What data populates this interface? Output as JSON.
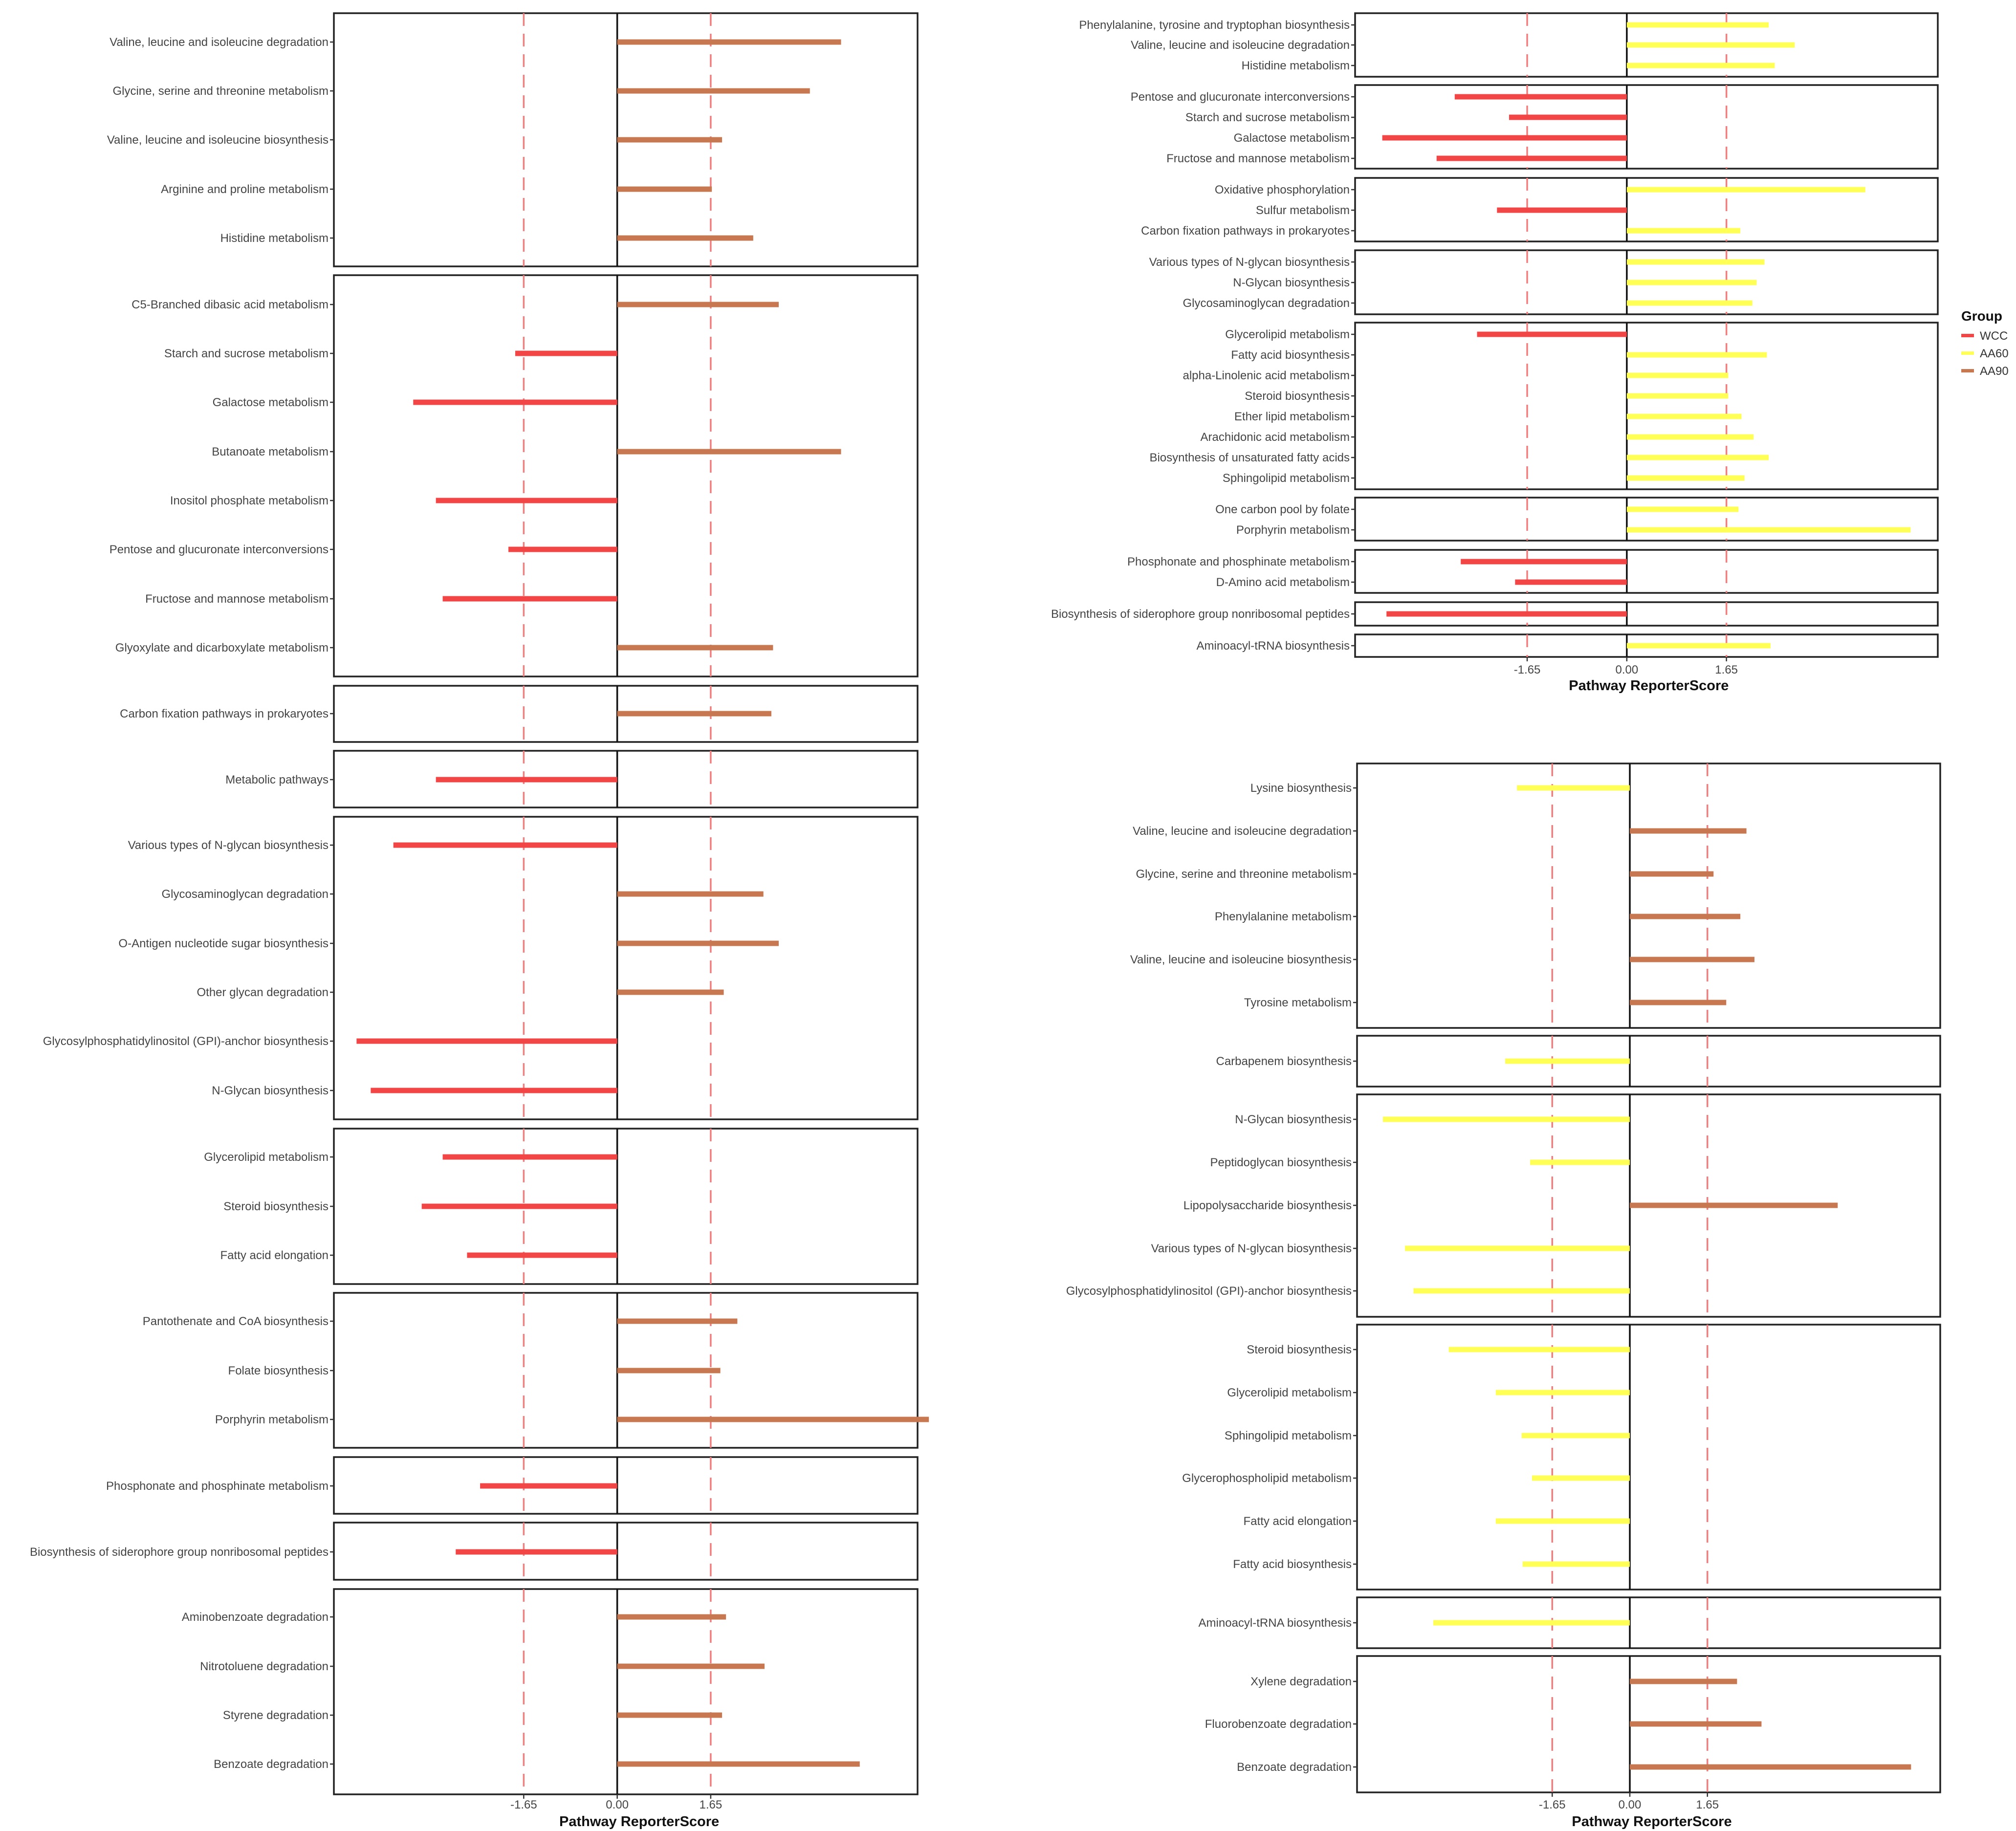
{
  "figure": {
    "legend_title": "Group"
  },
  "colors": {
    "WCC": "#f24545",
    "AA60": "#ffff55",
    "AA90": "#c87850",
    "ref_line": "#f08080",
    "box": "#222222",
    "text": "#444444"
  },
  "legend": [
    {
      "label": "WCC",
      "color": "#f24545"
    },
    {
      "label": "AA60",
      "color": "#ffff55"
    },
    {
      "label": "AA90",
      "color": "#c87850"
    }
  ],
  "chart_data": [
    {
      "type": "bar",
      "orientation": "horizontal",
      "id": "left",
      "xlabel": "Pathway ReporterScore",
      "xlim": [
        -5.0,
        5.3
      ],
      "xticks": [
        {
          "v": -1.65,
          "label": "-1.65"
        },
        {
          "v": 0,
          "label": "0.00"
        },
        {
          "v": 1.65,
          "label": "1.65"
        }
      ],
      "ref_lines": [
        -1.65,
        1.65
      ],
      "panels": [
        {
          "rows": [
            {
              "label": "Valine, leucine and isoleucine degradation",
              "value": 3.95,
              "group": "AA90"
            },
            {
              "label": "Glycine, serine and threonine metabolism",
              "value": 3.4,
              "group": "AA90"
            },
            {
              "label": "Valine, leucine and isoleucine biosynthesis",
              "value": 1.85,
              "group": "AA90"
            },
            {
              "label": "Arginine and proline metabolism",
              "value": 1.67,
              "group": "AA90"
            },
            {
              "label": "Histidine metabolism",
              "value": 2.4,
              "group": "AA90"
            }
          ]
        },
        {
          "rows": [
            {
              "label": "C5-Branched dibasic acid metabolism",
              "value": 2.85,
              "group": "AA90"
            },
            {
              "label": "Starch and sucrose metabolism",
              "value": -1.8,
              "group": "WCC"
            },
            {
              "label": "Galactose metabolism",
              "value": -3.6,
              "group": "WCC"
            },
            {
              "label": "Butanoate metabolism",
              "value": 3.95,
              "group": "AA90"
            },
            {
              "label": "Inositol phosphate metabolism",
              "value": -3.2,
              "group": "WCC"
            },
            {
              "label": "Pentose and glucuronate interconversions",
              "value": -1.92,
              "group": "WCC"
            },
            {
              "label": "Fructose and mannose metabolism",
              "value": -3.08,
              "group": "WCC"
            },
            {
              "label": "Glyoxylate and dicarboxylate metabolism",
              "value": 2.75,
              "group": "AA90"
            }
          ]
        },
        {
          "rows": [
            {
              "label": "Carbon fixation pathways in prokaryotes",
              "value": 2.72,
              "group": "AA90"
            }
          ]
        },
        {
          "rows": [
            {
              "label": "Metabolic pathways",
              "value": -3.2,
              "group": "WCC"
            }
          ]
        },
        {
          "rows": [
            {
              "label": "Various types of N-glycan biosynthesis",
              "value": -3.95,
              "group": "WCC"
            },
            {
              "label": "Glycosaminoglycan degradation",
              "value": 2.58,
              "group": "AA90"
            },
            {
              "label": "O-Antigen nucleotide sugar biosynthesis",
              "value": 2.85,
              "group": "AA90"
            },
            {
              "label": "Other glycan degradation",
              "value": 1.88,
              "group": "AA90"
            },
            {
              "label": "Glycosylphosphatidylinositol (GPI)-anchor biosynthesis",
              "value": -4.6,
              "group": "WCC"
            },
            {
              "label": "N-Glycan biosynthesis",
              "value": -4.35,
              "group": "WCC"
            }
          ]
        },
        {
          "rows": [
            {
              "label": "Glycerolipid metabolism",
              "value": -3.08,
              "group": "WCC"
            },
            {
              "label": "Steroid biosynthesis",
              "value": -3.45,
              "group": "WCC"
            },
            {
              "label": "Fatty acid elongation",
              "value": -2.65,
              "group": "WCC"
            }
          ]
        },
        {
          "rows": [
            {
              "label": "Pantothenate and CoA biosynthesis",
              "value": 2.12,
              "group": "AA90"
            },
            {
              "label": "Folate biosynthesis",
              "value": 1.82,
              "group": "AA90"
            },
            {
              "label": "Porphyrin metabolism",
              "value": 5.5,
              "group": "AA90"
            }
          ]
        },
        {
          "rows": [
            {
              "label": "Phosphonate and phosphinate metabolism",
              "value": -2.42,
              "group": "WCC"
            }
          ]
        },
        {
          "rows": [
            {
              "label": "Biosynthesis of siderophore group nonribosomal peptides",
              "value": -2.85,
              "group": "WCC"
            }
          ]
        },
        {
          "rows": [
            {
              "label": "Aminobenzoate degradation",
              "value": 1.92,
              "group": "AA90"
            },
            {
              "label": "Nitrotoluene degradation",
              "value": 2.6,
              "group": "AA90"
            },
            {
              "label": "Styrene degradation",
              "value": 1.85,
              "group": "AA90"
            },
            {
              "label": "Benzoate degradation",
              "value": 4.28,
              "group": "AA90"
            }
          ]
        }
      ]
    },
    {
      "type": "bar",
      "orientation": "horizontal",
      "id": "top-right",
      "xlabel": "Pathway ReporterScore",
      "xlim": [
        -4.5,
        5.15
      ],
      "xticks": [
        {
          "v": -1.65,
          "label": "-1.65"
        },
        {
          "v": 0,
          "label": "0.00"
        },
        {
          "v": 1.65,
          "label": "1.65"
        }
      ],
      "ref_lines": [
        -1.65,
        1.65
      ],
      "panels": [
        {
          "rows": [
            {
              "label": "Phenylalanine, tyrosine and tryptophan biosynthesis",
              "value": 2.35,
              "group": "AA60"
            },
            {
              "label": "Valine, leucine and isoleucine degradation",
              "value": 2.78,
              "group": "AA60"
            },
            {
              "label": "Histidine metabolism",
              "value": 2.45,
              "group": "AA60"
            }
          ]
        },
        {
          "rows": [
            {
              "label": "Pentose and glucuronate interconversions",
              "value": -2.85,
              "group": "WCC"
            },
            {
              "label": "Starch and sucrose metabolism",
              "value": -1.95,
              "group": "WCC"
            },
            {
              "label": "Galactose metabolism",
              "value": -4.05,
              "group": "WCC"
            },
            {
              "label": "Fructose and mannose metabolism",
              "value": -3.15,
              "group": "WCC"
            }
          ]
        },
        {
          "rows": [
            {
              "label": "Oxidative phosphorylation",
              "value": 3.95,
              "group": "AA60"
            },
            {
              "label": "Sulfur metabolism",
              "value": -2.15,
              "group": "WCC"
            },
            {
              "label": "Carbon fixation pathways in prokaryotes",
              "value": 1.88,
              "group": "AA60"
            }
          ]
        },
        {
          "rows": [
            {
              "label": "Various types of N-glycan biosynthesis",
              "value": 2.28,
              "group": "AA60"
            },
            {
              "label": "N-Glycan biosynthesis",
              "value": 2.15,
              "group": "AA60"
            },
            {
              "label": "Glycosaminoglycan degradation",
              "value": 2.08,
              "group": "AA60"
            }
          ]
        },
        {
          "rows": [
            {
              "label": "Glycerolipid metabolism",
              "value": -2.48,
              "group": "WCC"
            },
            {
              "label": "Fatty acid biosynthesis",
              "value": 2.32,
              "group": "AA60"
            },
            {
              "label": "alpha-Linolenic acid metabolism",
              "value": 1.68,
              "group": "AA60"
            },
            {
              "label": "Steroid biosynthesis",
              "value": 1.68,
              "group": "AA60"
            },
            {
              "label": "Ether lipid metabolism",
              "value": 1.9,
              "group": "AA60"
            },
            {
              "label": "Arachidonic acid metabolism",
              "value": 2.1,
              "group": "AA60"
            },
            {
              "label": "Biosynthesis of unsaturated fatty acids",
              "value": 2.35,
              "group": "AA60"
            },
            {
              "label": "Sphingolipid metabolism",
              "value": 1.95,
              "group": "AA60"
            }
          ]
        },
        {
          "rows": [
            {
              "label": "One carbon pool by folate",
              "value": 1.85,
              "group": "AA60"
            },
            {
              "label": "Porphyrin metabolism",
              "value": 4.7,
              "group": "AA60"
            }
          ]
        },
        {
          "rows": [
            {
              "label": "Phosphonate and phosphinate metabolism",
              "value": -2.75,
              "group": "WCC"
            },
            {
              "label": "D-Amino acid metabolism",
              "value": -1.85,
              "group": "WCC"
            }
          ]
        },
        {
          "rows": [
            {
              "label": "Biosynthesis of siderophore group nonribosomal peptides",
              "value": -3.98,
              "group": "WCC"
            }
          ]
        },
        {
          "rows": [
            {
              "label": "Aminoacyl-tRNA biosynthesis",
              "value": 2.38,
              "group": "AA60"
            }
          ]
        }
      ]
    },
    {
      "type": "bar",
      "orientation": "horizontal",
      "id": "bottom-right",
      "xlabel": "Pathway ReporterScore",
      "xlim": [
        -5.8,
        6.6
      ],
      "xticks": [
        {
          "v": -1.65,
          "label": "-1.65"
        },
        {
          "v": 0,
          "label": "0.00"
        },
        {
          "v": 1.65,
          "label": "1.65"
        }
      ],
      "ref_lines": [
        -1.65,
        1.65
      ],
      "panels": [
        {
          "rows": [
            {
              "label": "Lysine biosynthesis",
              "value": -2.4,
              "group": "AA60"
            },
            {
              "label": "Valine, leucine and isoleucine degradation",
              "value": 2.48,
              "group": "AA90"
            },
            {
              "label": "Glycine, serine and threonine metabolism",
              "value": 1.78,
              "group": "AA90"
            },
            {
              "label": "Phenylalanine metabolism",
              "value": 2.35,
              "group": "AA90"
            },
            {
              "label": "Valine, leucine and isoleucine biosynthesis",
              "value": 2.65,
              "group": "AA90"
            },
            {
              "label": "Tyrosine metabolism",
              "value": 2.05,
              "group": "AA90"
            }
          ]
        },
        {
          "rows": [
            {
              "label": "Carbapenem biosynthesis",
              "value": -2.65,
              "group": "AA60"
            }
          ]
        },
        {
          "rows": [
            {
              "label": "N-Glycan biosynthesis",
              "value": -5.25,
              "group": "AA60"
            },
            {
              "label": "Peptidoglycan biosynthesis",
              "value": -2.12,
              "group": "AA60"
            },
            {
              "label": "Lipopolysaccharide biosynthesis",
              "value": 4.42,
              "group": "AA90"
            },
            {
              "label": "Various types of N-glycan biosynthesis",
              "value": -4.78,
              "group": "AA60"
            },
            {
              "label": "Glycosylphosphatidylinositol (GPI)-anchor biosynthesis",
              "value": -4.6,
              "group": "AA60"
            }
          ]
        },
        {
          "rows": [
            {
              "label": "Steroid biosynthesis",
              "value": -3.85,
              "group": "AA60"
            },
            {
              "label": "Glycerolipid metabolism",
              "value": -2.85,
              "group": "AA60"
            },
            {
              "label": "Sphingolipid metabolism",
              "value": -2.3,
              "group": "AA60"
            },
            {
              "label": "Glycerophospholipid metabolism",
              "value": -2.08,
              "group": "AA60"
            },
            {
              "label": "Fatty acid elongation",
              "value": -2.85,
              "group": "AA60"
            },
            {
              "label": "Fatty acid biosynthesis",
              "value": -2.28,
              "group": "AA60"
            }
          ]
        },
        {
          "rows": [
            {
              "label": "Aminoacyl-tRNA biosynthesis",
              "value": -4.18,
              "group": "AA60"
            }
          ]
        },
        {
          "rows": [
            {
              "label": "Xylene degradation",
              "value": 2.28,
              "group": "AA90"
            },
            {
              "label": "Fluorobenzoate degradation",
              "value": 2.8,
              "group": "AA90"
            },
            {
              "label": "Benzoate degradation",
              "value": 5.98,
              "group": "AA90"
            }
          ]
        }
      ]
    }
  ]
}
